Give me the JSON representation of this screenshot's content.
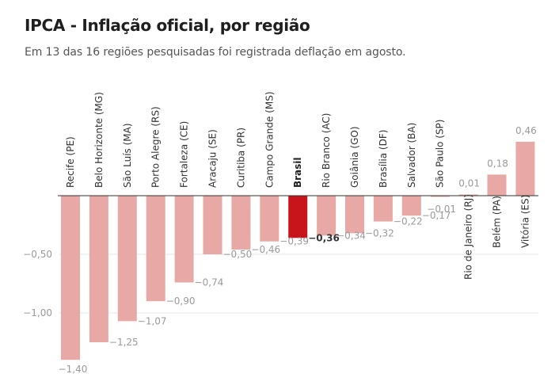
{
  "chart_data": {
    "type": "bar",
    "title": "IPCA - Inflação oficial, por região",
    "subtitle": "Em 13 das 16 regiões pesquisadas foi registrada deflação em agosto.",
    "xlabel": "",
    "ylabel": "",
    "ylim": [
      -1.4,
      0.46
    ],
    "y_ticks": [
      -0.5,
      -1.0
    ],
    "y_tick_labels": [
      "−0,50",
      "−1,00"
    ],
    "grid": true,
    "highlight": "Brasil",
    "colors": {
      "bar": "#e8a9a6",
      "highlight": "#c8151b",
      "axis": "#333333",
      "grid": "#e6e6e6"
    },
    "categories": [
      "Recife (PE)",
      "Belo Horizonte (MG)",
      "São Luís (MA)",
      "Porto Alegre (RS)",
      "Fortaleza (CE)",
      "Aracaju (SE)",
      "Curitiba (PR)",
      "Campo Grande (MS)",
      "Brasil",
      "Rio Branco (AC)",
      "Goiânia (GO)",
      "Brasília (DF)",
      "Salvador (BA)",
      "São Paulo (SP)",
      "Rio de Janeiro (RJ)",
      "Belém (PA)",
      "Vitória (ES)"
    ],
    "values": [
      -1.4,
      -1.25,
      -1.07,
      -0.9,
      -0.74,
      -0.5,
      -0.46,
      -0.39,
      -0.36,
      -0.34,
      -0.32,
      -0.22,
      -0.17,
      -0.01,
      0.01,
      0.18,
      0.46
    ],
    "value_labels": [
      "−1,40",
      "−1,25",
      "−1,07",
      "−0,90",
      "−0,74",
      "−0,50",
      "−0,46",
      "−0,39",
      "−0,36",
      "−0,34",
      "−0,32",
      "−0,22",
      "−0,17",
      "−0,01",
      "0,01",
      "0,18",
      "0,46"
    ]
  }
}
